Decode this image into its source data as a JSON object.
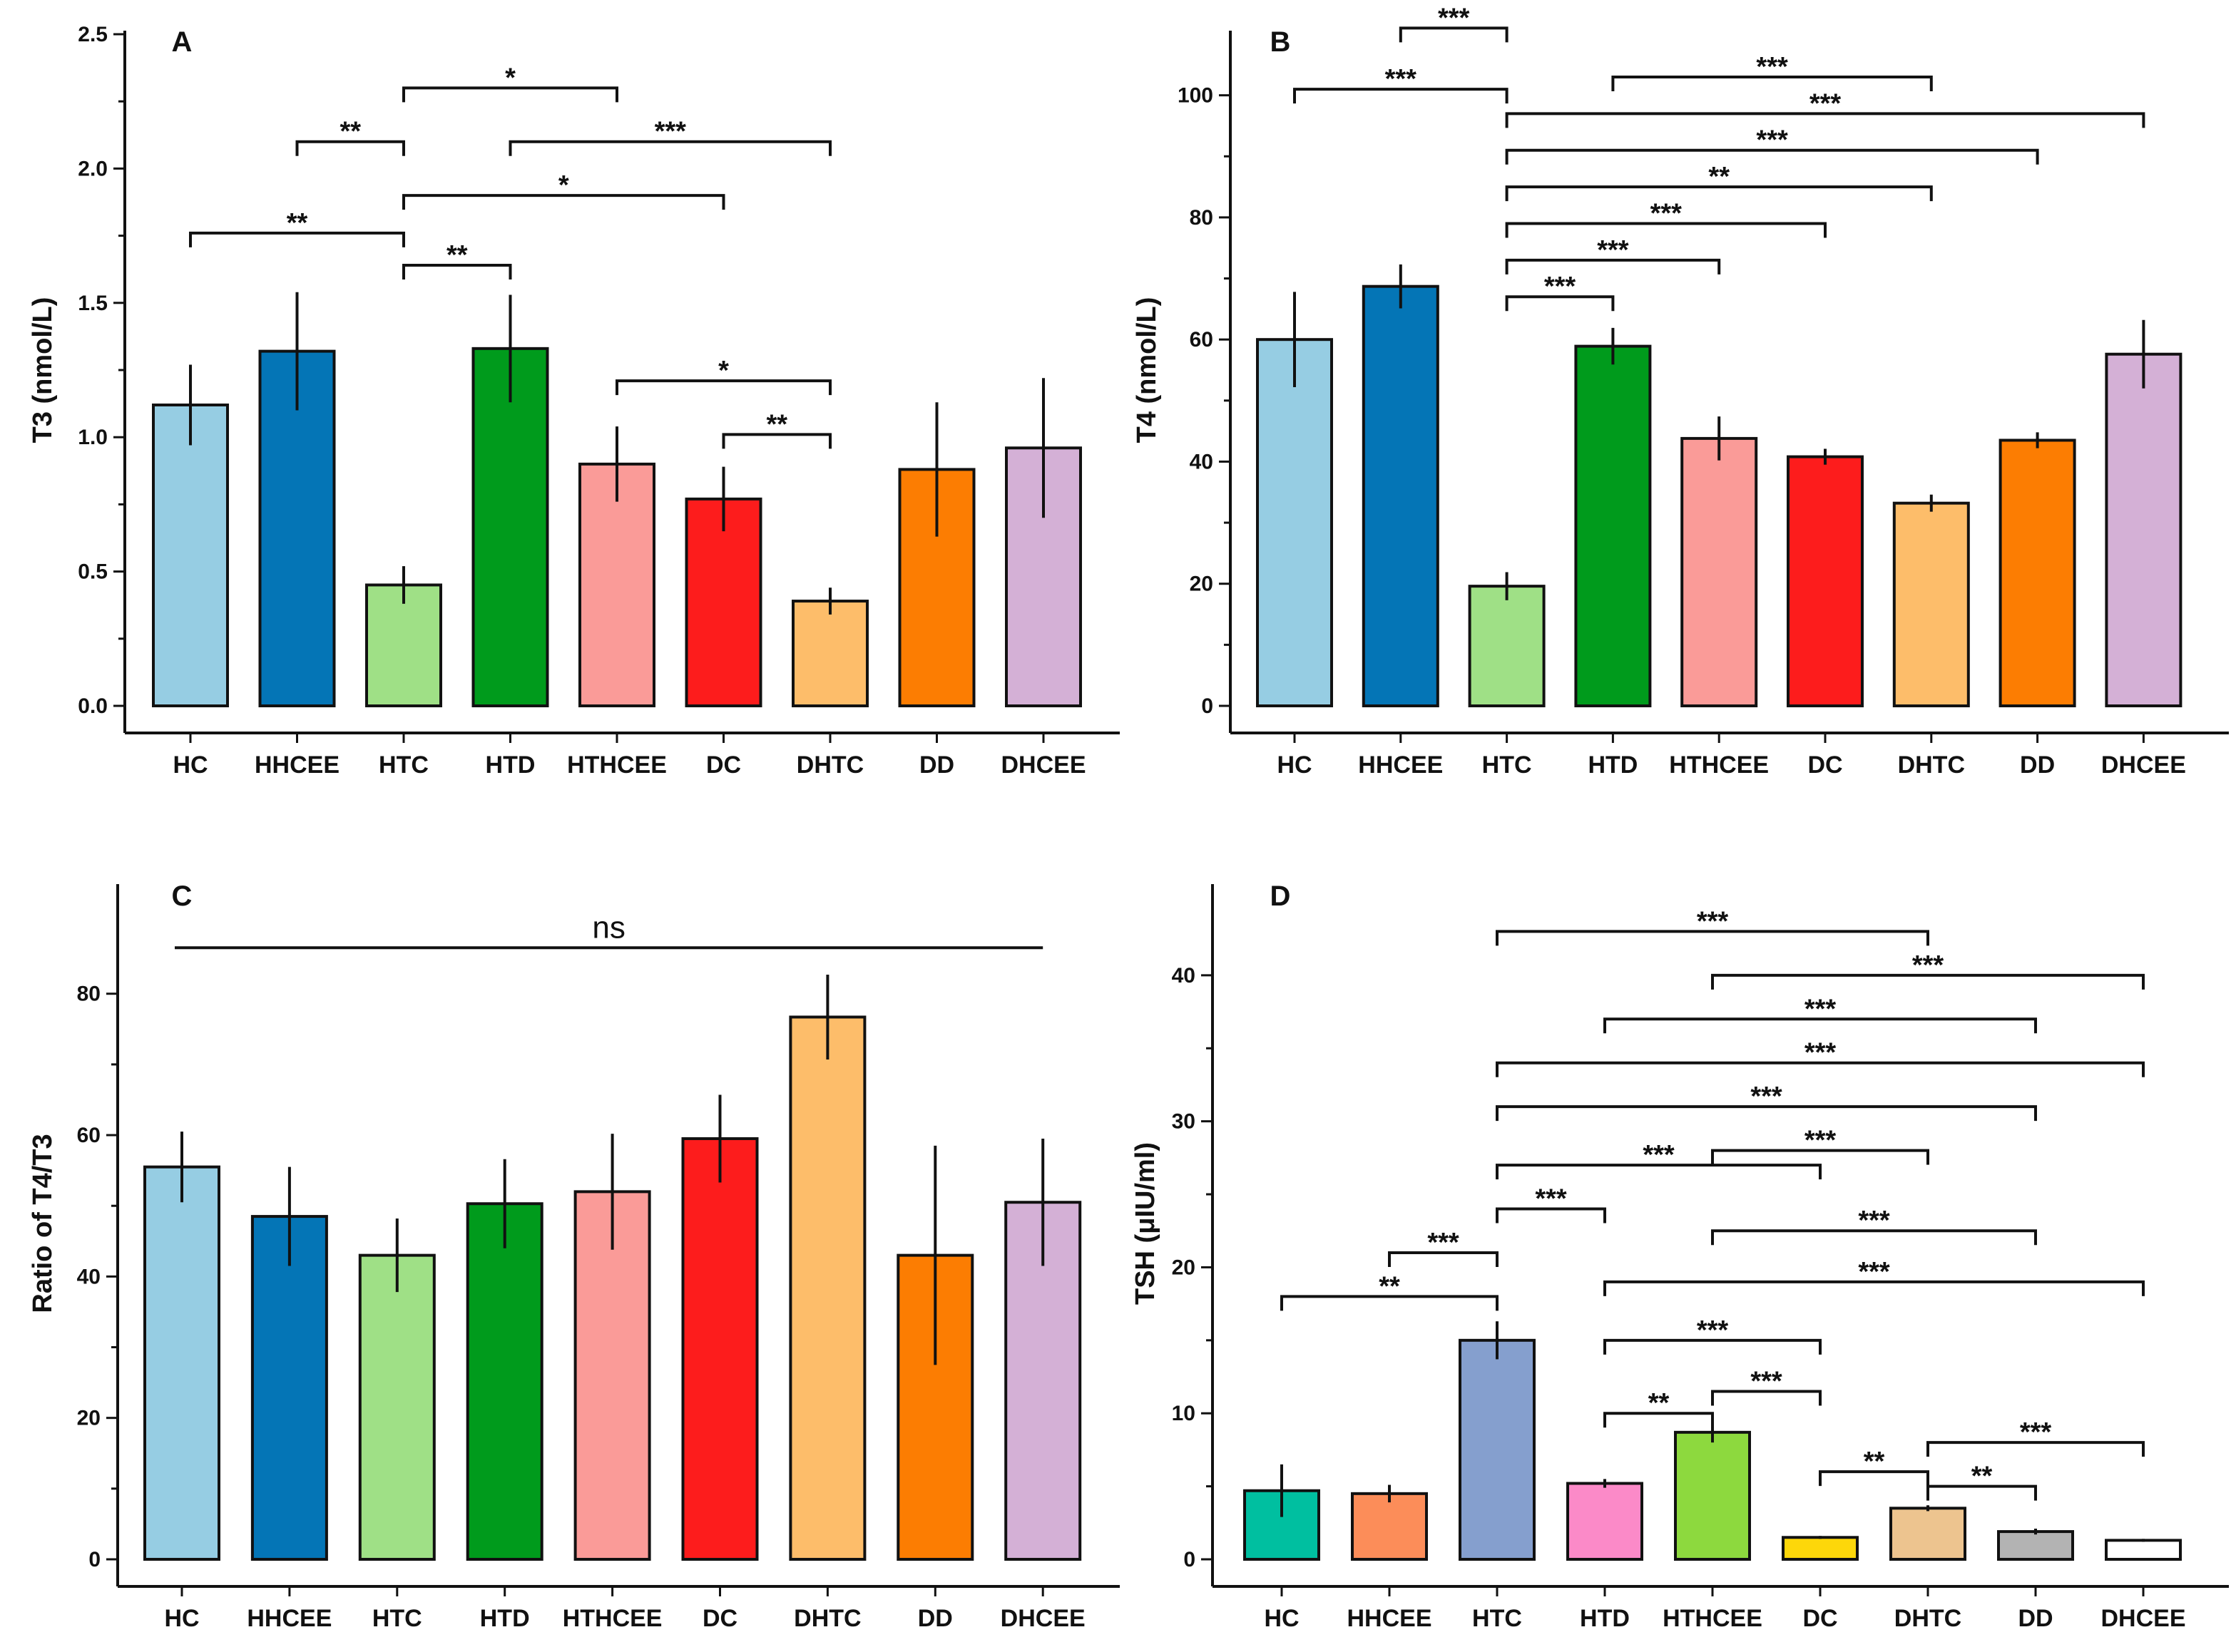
{
  "figure": {
    "categories": [
      "HC",
      "HHCEE",
      "HTC",
      "HTD",
      "HTHCEE",
      "DC",
      "DHTC",
      "DD",
      "DHCEE"
    ]
  },
  "chart_data": [
    {
      "panel": "A",
      "type": "bar",
      "ylabel": "T3 (nmol/L)",
      "ylim": [
        0,
        2.5
      ],
      "yticks": [
        0.0,
        0.5,
        1.0,
        1.5,
        2.0,
        2.5
      ],
      "ytick_labels": [
        "0.0",
        "0.5",
        "1.0",
        "1.5",
        "2.0",
        "2.5"
      ],
      "categories": [
        "HC",
        "HHCEE",
        "HTC",
        "HTD",
        "HTHCEE",
        "DC",
        "DHTC",
        "DD",
        "DHCEE"
      ],
      "values": [
        1.12,
        1.32,
        0.45,
        1.33,
        0.9,
        0.77,
        0.39,
        0.88,
        0.96
      ],
      "errors": [
        0.15,
        0.22,
        0.07,
        0.2,
        0.14,
        0.12,
        0.05,
        0.25,
        0.26
      ],
      "colors": [
        "#96CDE3",
        "#0475B6",
        "#9FE086",
        "#009B1C",
        "#FA9B98",
        "#FD1C1C",
        "#FDBD6A",
        "#FC7D02",
        "#D4B0D6"
      ],
      "comparisons": [
        {
          "from": 2,
          "to": 4,
          "y": 2.3,
          "label": "*"
        },
        {
          "from": 1,
          "to": 2,
          "y": 2.1,
          "label": "**"
        },
        {
          "from": 3,
          "to": 6,
          "y": 2.1,
          "label": "***"
        },
        {
          "from": 2,
          "to": 5,
          "y": 1.9,
          "label": "*"
        },
        {
          "from": 0,
          "to": 2,
          "y": 1.76,
          "label": "**"
        },
        {
          "from": 2,
          "to": 3,
          "y": 1.64,
          "label": "**"
        },
        {
          "from": 4,
          "to": 6,
          "y": 1.21,
          "label": "*"
        },
        {
          "from": 5,
          "to": 6,
          "y": 1.01,
          "label": "**"
        }
      ]
    },
    {
      "panel": "B",
      "type": "bar",
      "ylabel": "T4 (nmol/L)",
      "ylim": [
        0,
        110
      ],
      "yticks": [
        0,
        20,
        40,
        60,
        80,
        100
      ],
      "ytick_labels": [
        "0",
        "20",
        "40",
        "60",
        "80",
        "100"
      ],
      "categories": [
        "HC",
        "HHCEE",
        "HTC",
        "HTD",
        "HTHCEE",
        "DC",
        "DHTC",
        "DD",
        "DHCEE"
      ],
      "values": [
        60.0,
        68.7,
        19.6,
        58.9,
        43.8,
        40.8,
        33.2,
        43.5,
        57.6
      ],
      "errors": [
        7.8,
        3.6,
        2.3,
        3.0,
        3.6,
        1.3,
        1.4,
        1.3,
        5.6
      ],
      "colors": [
        "#96CDE3",
        "#0475B6",
        "#9FE086",
        "#009B1C",
        "#FA9B98",
        "#FD1C1C",
        "#FDBD6A",
        "#FC7D02",
        "#D4B0D6"
      ],
      "comparisons": [
        {
          "from": 1,
          "to": 2,
          "y": 111,
          "label": "***"
        },
        {
          "from": 0,
          "to": 2,
          "y": 101,
          "label": "***"
        },
        {
          "from": 3,
          "to": 6,
          "y": 103,
          "label": "***"
        },
        {
          "from": 2,
          "to": 8,
          "y": 97,
          "label": "***"
        },
        {
          "from": 2,
          "to": 7,
          "y": 91,
          "label": "***"
        },
        {
          "from": 2,
          "to": 6,
          "y": 85,
          "label": "**"
        },
        {
          "from": 2,
          "to": 5,
          "y": 79,
          "label": "***"
        },
        {
          "from": 2,
          "to": 4,
          "y": 73,
          "label": "***"
        },
        {
          "from": 2,
          "to": 3,
          "y": 67,
          "label": "***"
        }
      ]
    },
    {
      "panel": "C",
      "type": "bar",
      "ylabel": "Ratio of T4/T3",
      "ylim": [
        0,
        95
      ],
      "yticks": [
        0,
        20,
        40,
        60,
        80
      ],
      "ytick_labels": [
        "0",
        "20",
        "40",
        "60",
        "80"
      ],
      "categories": [
        "HC",
        "HHCEE",
        "HTC",
        "HTD",
        "HTHCEE",
        "DC",
        "DHTC",
        "DD",
        "DHCEE"
      ],
      "values": [
        55.5,
        48.5,
        43.0,
        50.3,
        52.0,
        59.5,
        76.7,
        43.0,
        50.5
      ],
      "errors": [
        5.0,
        7.0,
        5.2,
        6.3,
        8.2,
        6.2,
        6.0,
        15.5,
        9.0
      ],
      "colors": [
        "#96CDE3",
        "#0475B6",
        "#9FE086",
        "#009B1C",
        "#FA9B98",
        "#FD1C1C",
        "#FDBD6A",
        "#FC7D02",
        "#D4B0D6"
      ],
      "comparisons": [
        {
          "from": 0,
          "to": 8,
          "y": 86.5,
          "label": "ns"
        }
      ]
    },
    {
      "panel": "D",
      "type": "bar",
      "ylabel": "TSH (μIU/ml)",
      "ylim": [
        0,
        46
      ],
      "yticks": [
        0,
        10,
        20,
        30,
        40
      ],
      "ytick_labels": [
        "0",
        "10",
        "20",
        "30",
        "40"
      ],
      "categories": [
        "HC",
        "HHCEE",
        "HTC",
        "HTD",
        "HTHCEE",
        "DC",
        "DHTC",
        "DD",
        "DHCEE"
      ],
      "values": [
        4.7,
        4.5,
        15.0,
        5.2,
        8.7,
        1.5,
        3.5,
        1.9,
        1.3
      ],
      "errors": [
        1.8,
        0.6,
        1.3,
        0.3,
        0.7,
        0.1,
        0.2,
        0.2,
        0.1
      ],
      "colors": [
        "#00BFA0",
        "#FC8D59",
        "#859FCE",
        "#FB8AC8",
        "#8DD93E",
        "#FDD70A",
        "#EDC48F",
        "#B3B3B3",
        "#FFFFFF"
      ],
      "comparisons": [
        {
          "from": 2,
          "to": 6,
          "y": 43.0,
          "label": "***"
        },
        {
          "from": 4,
          "to": 8,
          "y": 40.0,
          "label": "***"
        },
        {
          "from": 3,
          "to": 7,
          "y": 37.0,
          "label": "***"
        },
        {
          "from": 2,
          "to": 8,
          "y": 34.0,
          "label": "***"
        },
        {
          "from": 2,
          "to": 7,
          "y": 31.0,
          "label": "***"
        },
        {
          "from": 4,
          "to": 6,
          "y": 28.0,
          "label": "***"
        },
        {
          "from": 2,
          "to": 5,
          "y": 27.0,
          "label": "***"
        },
        {
          "from": 2,
          "to": 3,
          "y": 24.0,
          "label": "***"
        },
        {
          "from": 4,
          "to": 7,
          "y": 22.5,
          "label": "***"
        },
        {
          "from": 1,
          "to": 2,
          "y": 21.0,
          "label": "***"
        },
        {
          "from": 3,
          "to": 8,
          "y": 19.0,
          "label": "***"
        },
        {
          "from": 0,
          "to": 2,
          "y": 18.0,
          "label": "**"
        },
        {
          "from": 3,
          "to": 5,
          "y": 15.0,
          "label": "***"
        },
        {
          "from": 4,
          "to": 5,
          "y": 11.5,
          "label": "***"
        },
        {
          "from": 3,
          "to": 4,
          "y": 10.0,
          "label": "**"
        },
        {
          "from": 6,
          "to": 8,
          "y": 8.0,
          "label": "***"
        },
        {
          "from": 5,
          "to": 6,
          "y": 6.0,
          "label": "**"
        },
        {
          "from": 6,
          "to": 7,
          "y": 5.0,
          "label": "**"
        }
      ]
    }
  ]
}
